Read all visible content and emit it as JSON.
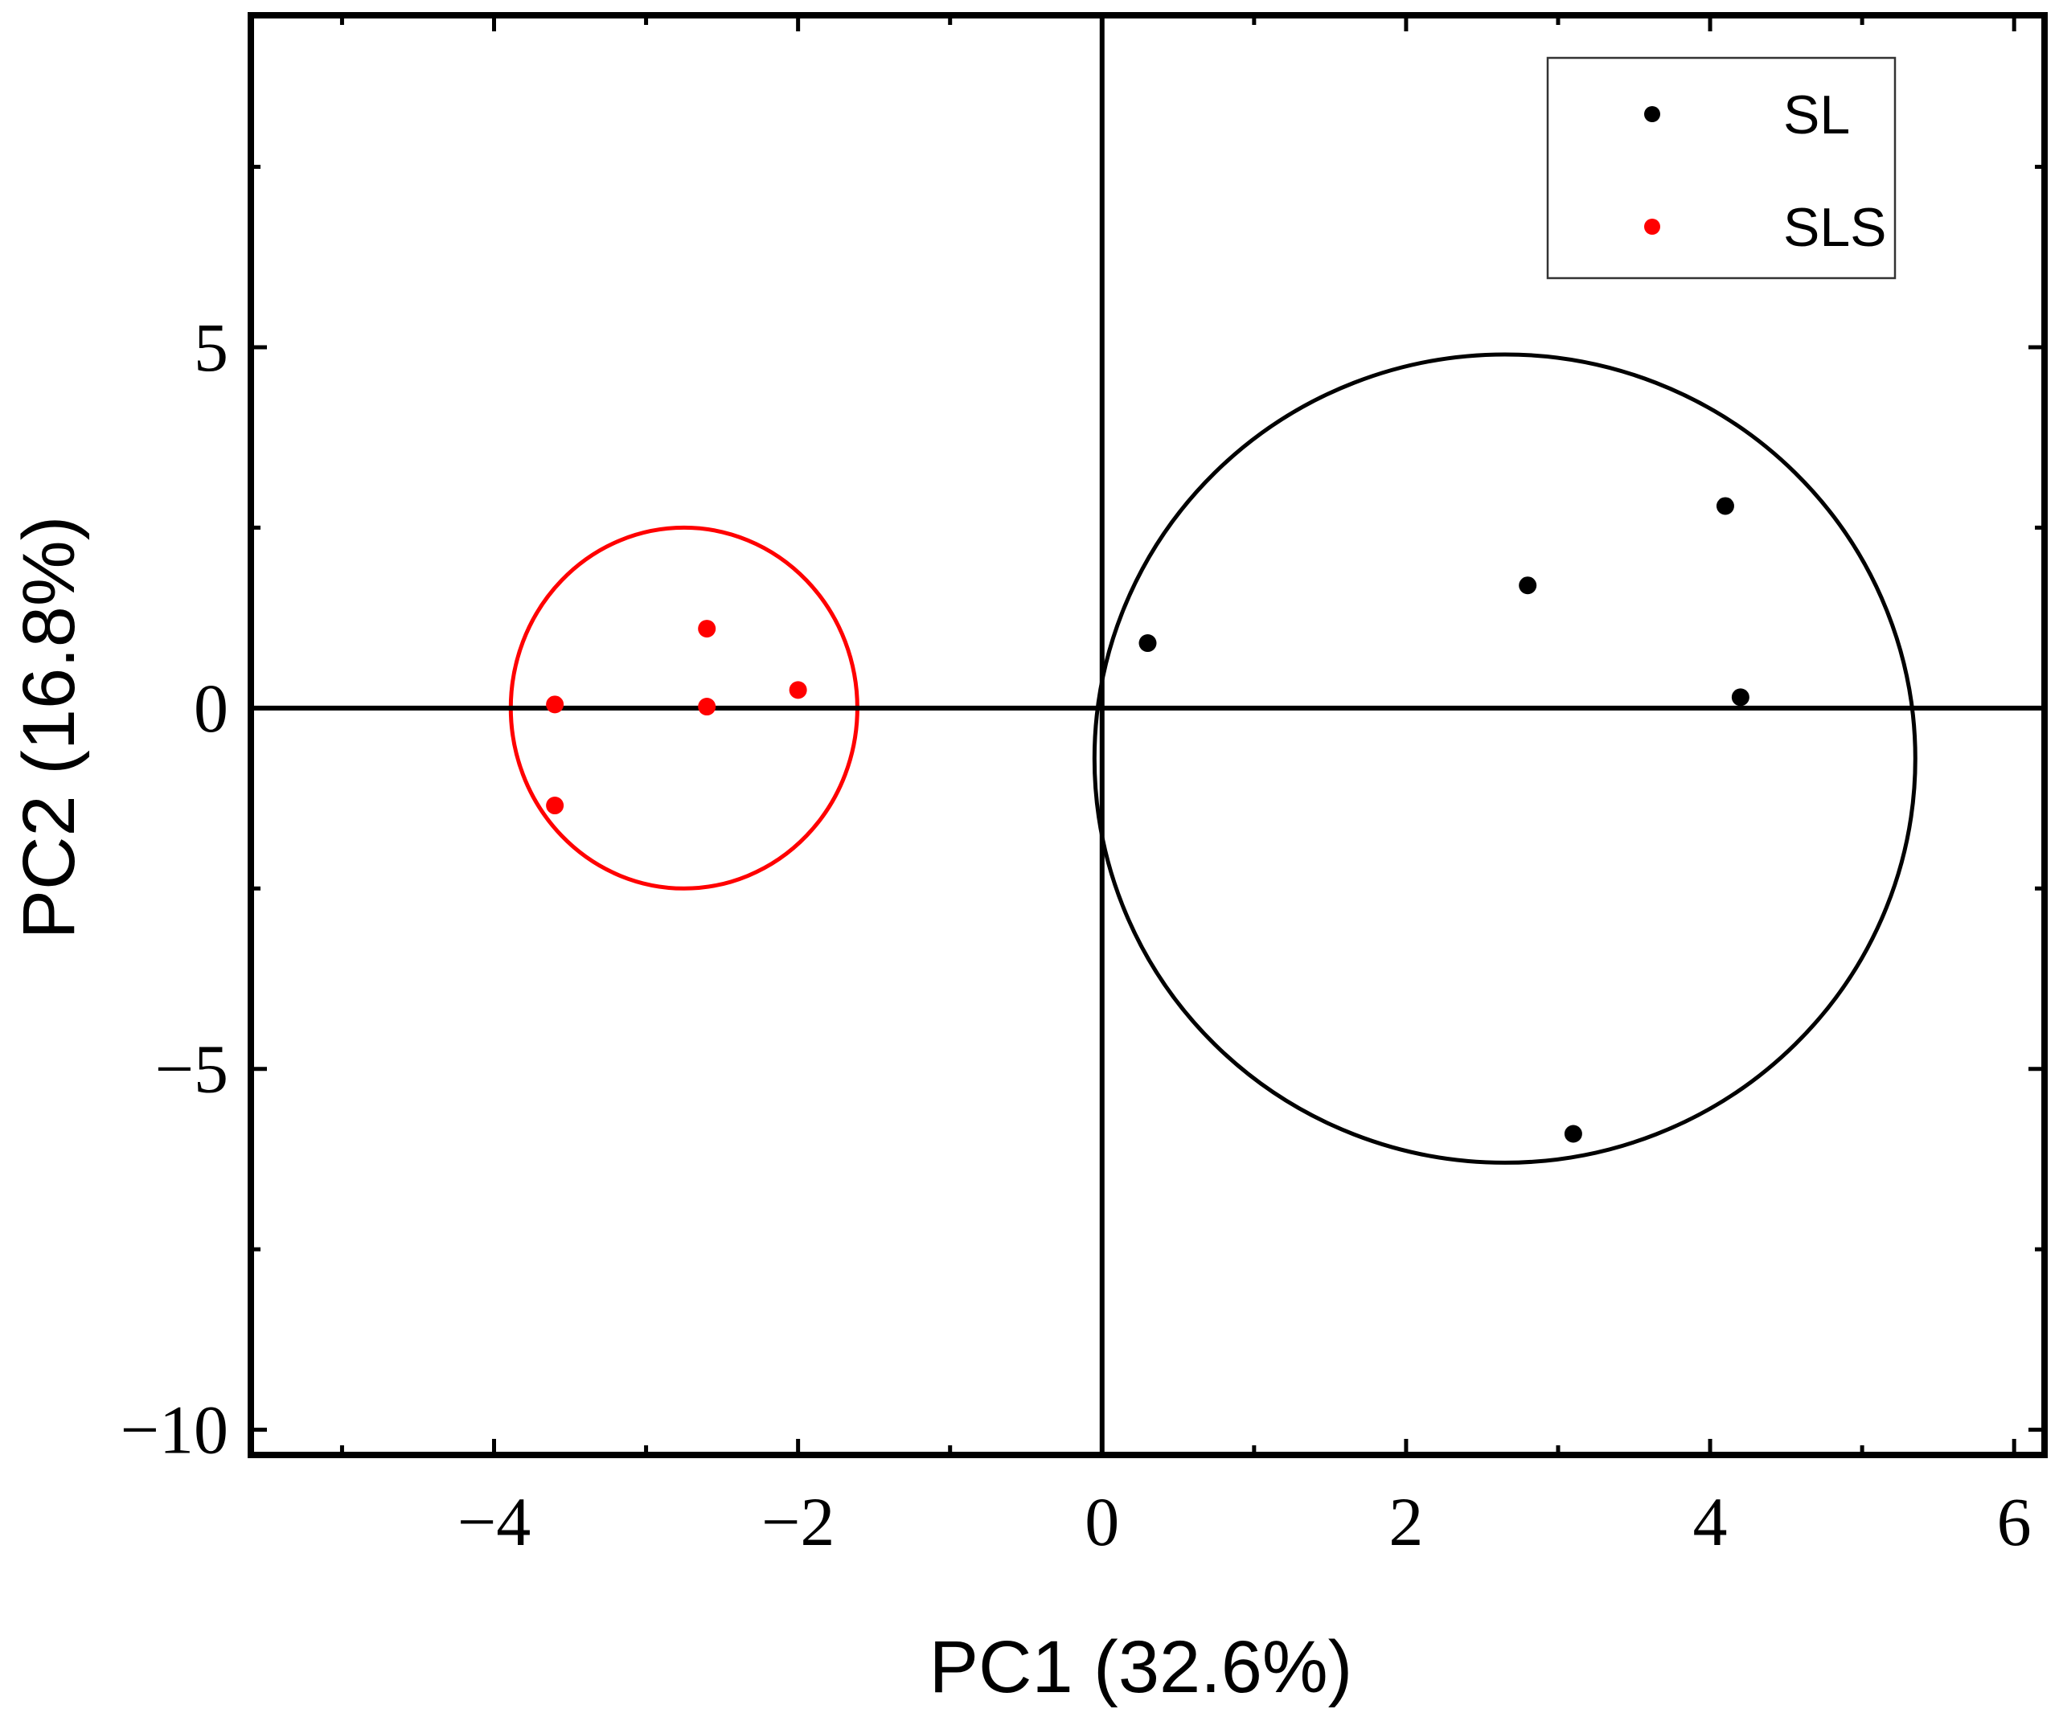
{
  "chart_data": {
    "type": "scatter",
    "xlabel": "PC1 (32.6%)",
    "ylabel": "PC2 (16.8%)",
    "xlim": [
      -5.6,
      6.2
    ],
    "ylim": [
      -10.35,
      9.6
    ],
    "xticks": [
      -4,
      -2,
      0,
      2,
      4,
      6
    ],
    "xtick_labels": [
      "−4",
      "−2",
      "0",
      "2",
      "4",
      "6"
    ],
    "yticks": [
      -10,
      -5,
      0,
      5
    ],
    "ytick_labels": [
      "−10",
      "−5",
      "0",
      "5"
    ],
    "x_minor_step": 1,
    "y_minor_step": 2.5,
    "grid": false,
    "zero_lines": true,
    "legend_position": "top-right",
    "series": [
      {
        "name": "SL",
        "color": "#000000",
        "points": [
          {
            "x": 0.3,
            "y": 0.9
          },
          {
            "x": 2.8,
            "y": 1.7
          },
          {
            "x": 4.1,
            "y": 2.8
          },
          {
            "x": 4.2,
            "y": 0.15
          },
          {
            "x": 3.1,
            "y": -5.9
          }
        ],
        "ellipse": {
          "cx": 2.65,
          "cy": -0.7,
          "rx": 2.7,
          "ry": 5.6
        }
      },
      {
        "name": "SLS",
        "color": "#ff0000",
        "points": [
          {
            "x": -2.6,
            "y": 1.1
          },
          {
            "x": -2.0,
            "y": 0.25
          },
          {
            "x": -3.6,
            "y": 0.05
          },
          {
            "x": -2.6,
            "y": 0.02
          },
          {
            "x": -3.6,
            "y": -1.35
          }
        ],
        "ellipse": {
          "cx": -2.75,
          "cy": 0.0,
          "rx": 1.14,
          "ry": 2.5
        }
      }
    ]
  }
}
